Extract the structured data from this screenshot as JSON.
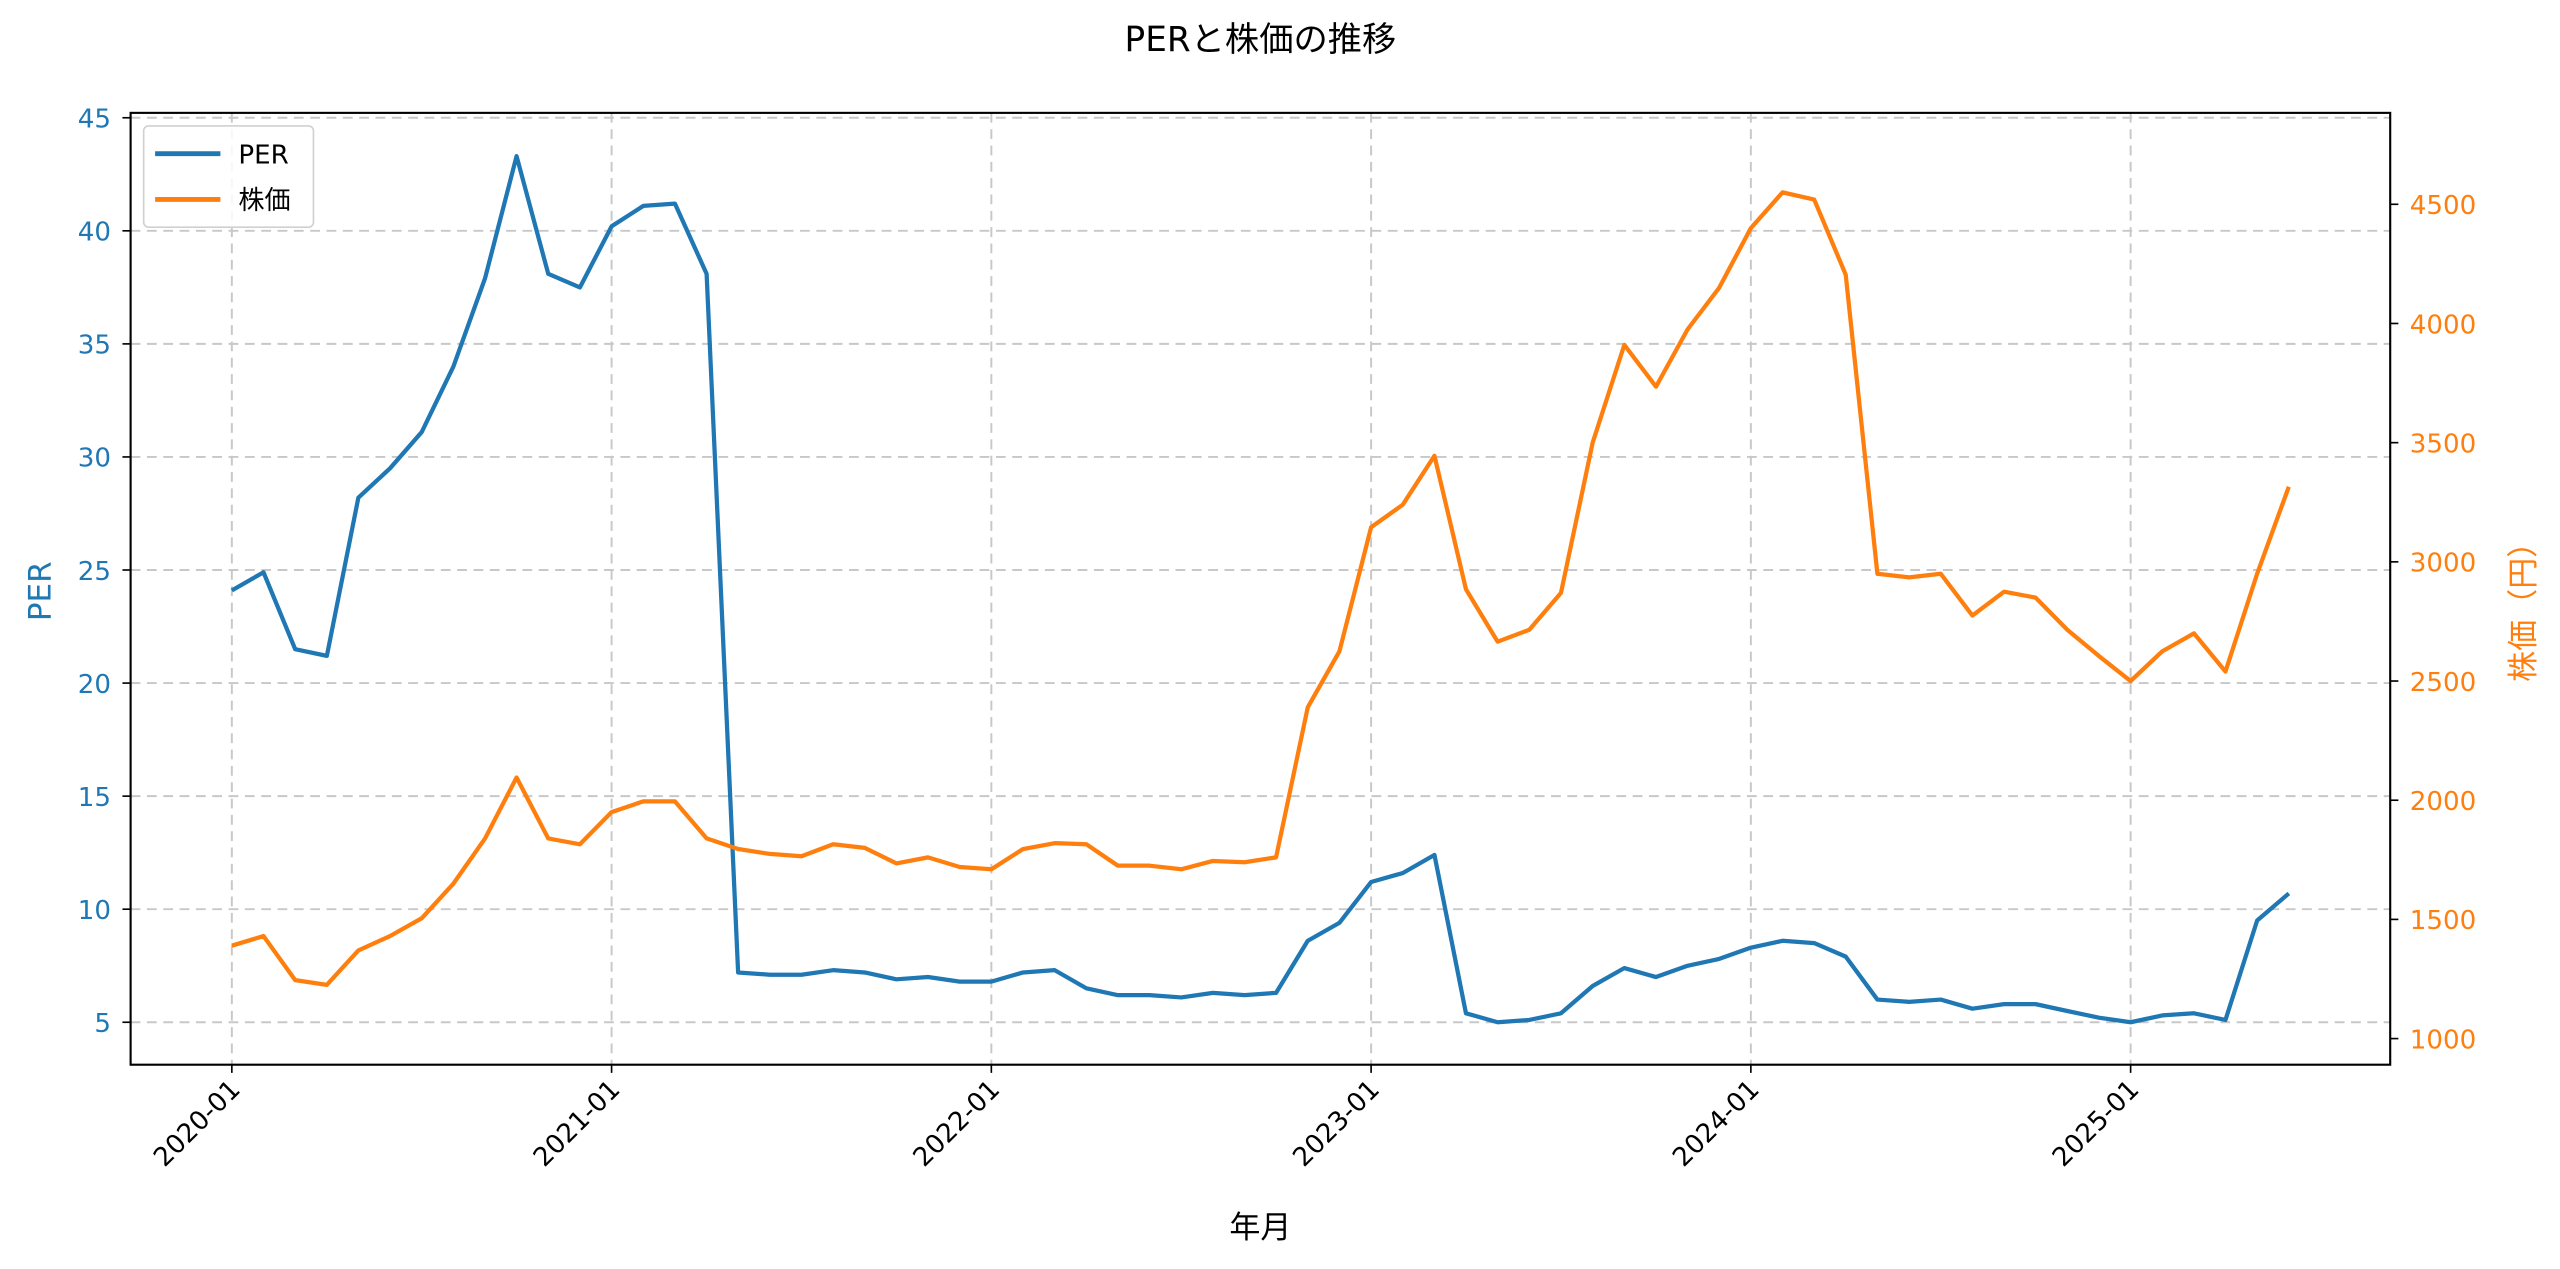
{
  "title": "PERと株価の推移",
  "legend": {
    "per": "PER",
    "price": "株価"
  },
  "colors": {
    "per": "#1f77b4",
    "price": "#ff7f0e"
  },
  "chart_data": {
    "type": "line",
    "title": "PERと株価の推移",
    "xlabel": "年月",
    "ylabel": "PER",
    "ylabel_right": "株価（円）",
    "ylim": [
      3.2,
      45
    ],
    "ylim_right": [
      880,
      4880
    ],
    "yticks": [
      5,
      10,
      15,
      20,
      25,
      30,
      35,
      40,
      45
    ],
    "yticks_right": [
      1000,
      1500,
      2000,
      2500,
      3000,
      3500,
      4000,
      4500
    ],
    "xtick_labels": [
      "2020-01",
      "2021-01",
      "2022-01",
      "2023-01",
      "2024-01",
      "2025-01"
    ],
    "grid": true,
    "legend_position": "upper left",
    "x": [
      "2020-01",
      "2020-02",
      "2020-03",
      "2020-04",
      "2020-05",
      "2020-06",
      "2020-07",
      "2020-08",
      "2020-09",
      "2020-10",
      "2020-11",
      "2020-12",
      "2021-01",
      "2021-02",
      "2021-03",
      "2021-04",
      "2021-05",
      "2021-06",
      "2021-07",
      "2021-08",
      "2021-09",
      "2021-10",
      "2021-11",
      "2021-12",
      "2022-01",
      "2022-02",
      "2022-03",
      "2022-04",
      "2022-05",
      "2022-06",
      "2022-07",
      "2022-08",
      "2022-09",
      "2022-10",
      "2022-11",
      "2022-12",
      "2023-01",
      "2023-02",
      "2023-03",
      "2023-04",
      "2023-05",
      "2023-06",
      "2023-07",
      "2023-08",
      "2023-09",
      "2023-10",
      "2023-11",
      "2023-12",
      "2024-01",
      "2024-02",
      "2024-03",
      "2024-04",
      "2024-05",
      "2024-06",
      "2024-07",
      "2024-08",
      "2024-09",
      "2024-10",
      "2024-11",
      "2024-12",
      "2025-01",
      "2025-02",
      "2025-03",
      "2025-04",
      "2025-05",
      "2025-06"
    ],
    "series": [
      {
        "name": "PER",
        "axis": "left",
        "values": [
          24.1,
          24.9,
          21.5,
          21.2,
          28.2,
          29.5,
          31.1,
          34.0,
          37.9,
          43.3,
          38.1,
          37.5,
          40.2,
          41.1,
          41.2,
          38.1,
          7.2,
          7.1,
          7.1,
          7.3,
          7.2,
          6.9,
          7.0,
          6.8,
          6.8,
          7.2,
          7.3,
          6.5,
          6.2,
          6.2,
          6.1,
          6.3,
          6.2,
          6.3,
          8.6,
          9.4,
          11.2,
          11.6,
          12.4,
          5.4,
          5.0,
          5.1,
          5.4,
          6.6,
          7.4,
          7.0,
          7.5,
          7.8,
          8.3,
          8.6,
          8.5,
          7.9,
          6.0,
          5.9,
          6.0,
          5.6,
          5.8,
          5.8,
          5.5,
          5.2,
          5.0,
          5.3,
          5.4,
          5.1,
          9.5,
          10.7
        ]
      },
      {
        "name": "株価",
        "axis": "right",
        "values": [
          1390,
          1430,
          1245,
          1225,
          1370,
          1430,
          1505,
          1650,
          1840,
          2095,
          1840,
          1815,
          1950,
          1995,
          1995,
          1840,
          1795,
          1775,
          1765,
          1815,
          1800,
          1735,
          1760,
          1720,
          1710,
          1795,
          1820,
          1815,
          1725,
          1725,
          1710,
          1745,
          1740,
          1760,
          2390,
          2625,
          3145,
          3240,
          3445,
          2885,
          2665,
          2715,
          2870,
          3500,
          3910,
          3735,
          3975,
          4150,
          4400,
          4550,
          4520,
          4205,
          2950,
          2935,
          2950,
          2775,
          2875,
          2850,
          2715,
          2605,
          2500,
          2625,
          2700,
          2540,
          2950,
          3315
        ]
      }
    ]
  }
}
